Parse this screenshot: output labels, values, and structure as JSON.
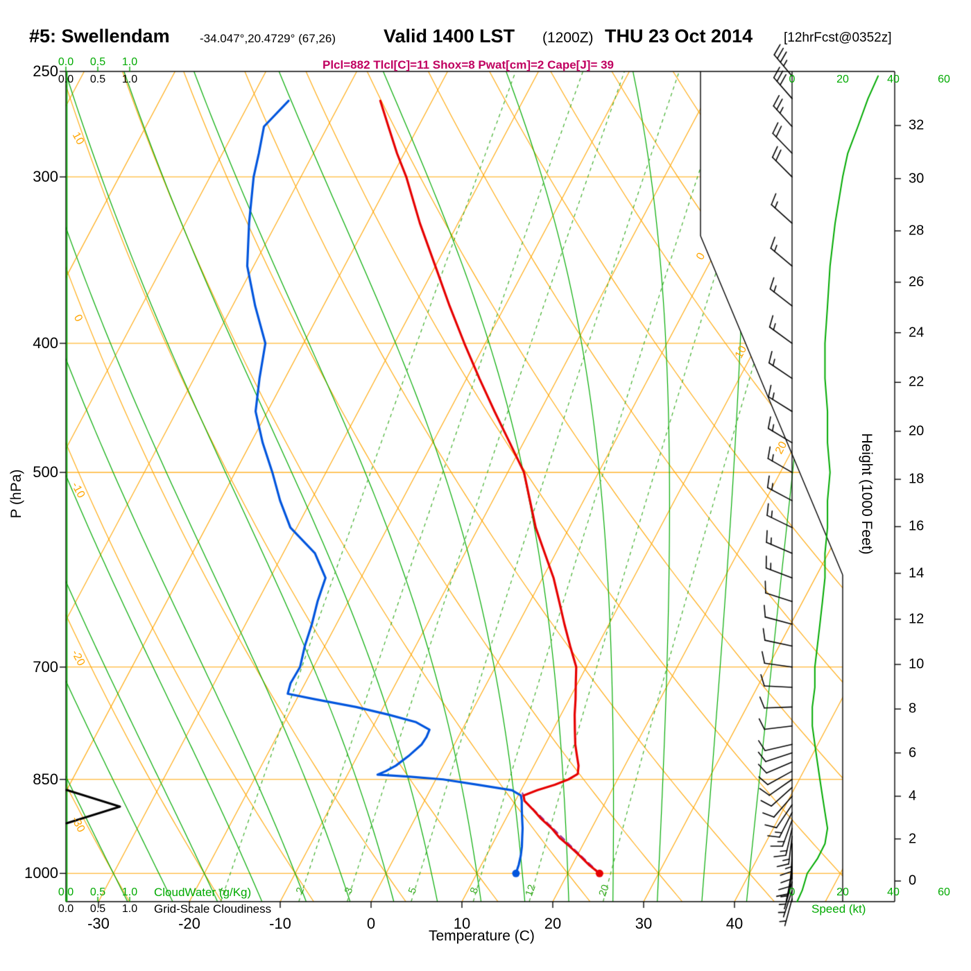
{
  "header": {
    "station": "#5: Swellendam",
    "coords": "-34.047°,20.4729° (67,26)",
    "valid": "Valid 1400 LST",
    "zulu": "(1200Z)",
    "date": "THU 23 Oct 2014",
    "fcst": "[12hrFcst@0352z]",
    "params": "Plcl=882 Tlcl[C]=11 Shox=8 Pwat[cm]=2 Cape[J]= 39"
  },
  "axes": {
    "pressure": {
      "title": "P (hPa)",
      "ticks": [
        250,
        300,
        400,
        500,
        700,
        850,
        1000
      ]
    },
    "temperature": {
      "title": "Temperature (C)",
      "ticks": [
        -30,
        -20,
        -10,
        0,
        10,
        20,
        30,
        40
      ]
    },
    "height": {
      "title": "Height (1000 Feet)",
      "ticks": [
        0,
        2,
        4,
        6,
        8,
        10,
        12,
        14,
        16,
        18,
        20,
        22,
        24,
        26,
        28,
        30,
        32
      ]
    },
    "cloud": {
      "ticks": [
        "0.0",
        "0.5",
        "1.0"
      ]
    },
    "speed": {
      "ticks": [
        0,
        20,
        40,
        60
      ]
    }
  },
  "legend": {
    "cloudwater": "CloudWater (g/Kg)",
    "cloudiness": "Grid-Scale Cloudiness",
    "speed": "Speed (kt)"
  },
  "colors": {
    "orange": "#ffa500",
    "green": "#00aa00",
    "green2": "#3fae2a",
    "red": "#e60000",
    "blue": "#0055dd",
    "purple": "#993399",
    "magenta": "#c00060",
    "black": "#000000"
  },
  "chart_data": {
    "type": "line",
    "variant": "skew-t log-p sounding",
    "pressure_range_hpa": [
      250,
      1050
    ],
    "temperature_axis_c": [
      -30,
      40
    ],
    "grid": {
      "isobars_hpa": [
        300,
        400,
        500,
        700,
        850,
        1000
      ],
      "isotherms_c": {
        "min": -110,
        "max": 50,
        "step": 10
      },
      "dry_adiabats_c": {
        "min": -30,
        "max": 170,
        "step": 10
      },
      "dry_adiabat_labels_c": [
        10,
        0,
        -10,
        -20,
        -30
      ],
      "moist_adiabats_c": {
        "min": -30,
        "max": 40,
        "step": 5
      },
      "mixing_ratio_lines_gkg": [
        1,
        2,
        3,
        5,
        8,
        12,
        20
      ],
      "isotherm_inline_labels_c": [
        0,
        10,
        20
      ]
    },
    "temperature_profile_c": [
      [
        1000,
        23.5
      ],
      [
        985,
        21.8
      ],
      [
        970,
        20.3
      ],
      [
        955,
        18.7
      ],
      [
        940,
        17.0
      ],
      [
        925,
        15.6
      ],
      [
        910,
        13.9
      ],
      [
        895,
        12.4
      ],
      [
        882,
        11.0
      ],
      [
        874,
        10.6
      ],
      [
        866,
        11.8
      ],
      [
        858,
        13.4
      ],
      [
        850,
        14.6
      ],
      [
        842,
        15.3
      ],
      [
        830,
        14.9
      ],
      [
        815,
        14.1
      ],
      [
        800,
        13.3
      ],
      [
        780,
        12.4
      ],
      [
        760,
        11.5
      ],
      [
        740,
        10.7
      ],
      [
        720,
        9.8
      ],
      [
        700,
        8.9
      ],
      [
        675,
        7.0
      ],
      [
        650,
        5.1
      ],
      [
        625,
        3.2
      ],
      [
        600,
        1.2
      ],
      [
        575,
        -1.2
      ],
      [
        550,
        -3.7
      ],
      [
        525,
        -5.9
      ],
      [
        500,
        -8.2
      ],
      [
        475,
        -11.5
      ],
      [
        450,
        -15.0
      ],
      [
        425,
        -18.6
      ],
      [
        400,
        -22.3
      ],
      [
        375,
        -26.1
      ],
      [
        350,
        -30.0
      ],
      [
        325,
        -34.2
      ],
      [
        300,
        -38.4
      ],
      [
        288,
        -40.8
      ],
      [
        275,
        -43.3
      ],
      [
        263,
        -45.7
      ]
    ],
    "dewpoint_profile_c": [
      [
        1000,
        14.3
      ],
      [
        985,
        14.1
      ],
      [
        970,
        13.8
      ],
      [
        955,
        13.4
      ],
      [
        940,
        12.9
      ],
      [
        925,
        12.4
      ],
      [
        910,
        11.8
      ],
      [
        895,
        11.2
      ],
      [
        882,
        10.7
      ],
      [
        874,
        10.3
      ],
      [
        866,
        9.0
      ],
      [
        858,
        5.0
      ],
      [
        850,
        0.8
      ],
      [
        846,
        -3.0
      ],
      [
        843,
        -6.7
      ],
      [
        838,
        -6.0
      ],
      [
        830,
        -5.2
      ],
      [
        815,
        -4.3
      ],
      [
        800,
        -3.6
      ],
      [
        790,
        -3.5
      ],
      [
        780,
        -3.6
      ],
      [
        770,
        -5.5
      ],
      [
        760,
        -9.0
      ],
      [
        750,
        -13.0
      ],
      [
        740,
        -18.0
      ],
      [
        733,
        -21.3
      ],
      [
        720,
        -21.6
      ],
      [
        700,
        -21.5
      ],
      [
        675,
        -22.2
      ],
      [
        650,
        -22.7
      ],
      [
        625,
        -23.4
      ],
      [
        600,
        -23.9
      ],
      [
        575,
        -26.5
      ],
      [
        550,
        -30.7
      ],
      [
        525,
        -33.4
      ],
      [
        500,
        -35.9
      ],
      [
        475,
        -38.7
      ],
      [
        450,
        -41.3
      ],
      [
        425,
        -42.8
      ],
      [
        400,
        -44.2
      ],
      [
        375,
        -47.5
      ],
      [
        350,
        -50.7
      ],
      [
        325,
        -53.0
      ],
      [
        300,
        -55.2
      ],
      [
        288,
        -56.0
      ],
      [
        275,
        -57.0
      ],
      [
        263,
        -55.8
      ]
    ],
    "parcel_path_c": [
      [
        1000,
        23.5
      ],
      [
        960,
        19.4
      ],
      [
        920,
        15.2
      ],
      [
        882,
        11.0
      ],
      [
        868,
        10.2
      ]
    ],
    "surface_dots": {
      "pressure_hpa": 1000,
      "temperature_c": 23.5,
      "dewpoint_c": 14.3
    },
    "wind_barbs_p_kt_dir": [
      [
        1045,
        3,
        195
      ],
      [
        1030,
        4,
        198
      ],
      [
        1015,
        5,
        196
      ],
      [
        1000,
        6,
        192
      ],
      [
        988,
        8,
        188
      ],
      [
        975,
        10,
        184
      ],
      [
        962,
        12,
        180
      ],
      [
        950,
        13,
        181
      ],
      [
        938,
        14,
        187
      ],
      [
        925,
        14,
        193
      ],
      [
        912,
        13,
        200
      ],
      [
        900,
        13,
        207
      ],
      [
        888,
        12,
        214
      ],
      [
        875,
        12,
        221
      ],
      [
        862,
        11,
        228
      ],
      [
        850,
        11,
        235
      ],
      [
        838,
        10,
        241
      ],
      [
        825,
        10,
        247
      ],
      [
        812,
        9,
        252
      ],
      [
        800,
        9,
        257
      ],
      [
        775,
        8,
        263
      ],
      [
        750,
        8,
        268
      ],
      [
        725,
        9,
        273
      ],
      [
        700,
        9,
        278
      ],
      [
        675,
        10,
        282
      ],
      [
        650,
        11,
        285
      ],
      [
        625,
        12,
        288
      ],
      [
        600,
        13,
        291
      ],
      [
        575,
        13,
        293
      ],
      [
        550,
        14,
        296
      ],
      [
        525,
        14,
        298
      ],
      [
        500,
        15,
        300
      ],
      [
        475,
        14,
        301
      ],
      [
        450,
        14,
        302
      ],
      [
        425,
        13,
        304
      ],
      [
        400,
        13,
        306
      ],
      [
        375,
        14,
        308
      ],
      [
        350,
        15,
        310
      ],
      [
        325,
        17,
        312
      ],
      [
        300,
        20,
        315
      ],
      [
        288,
        22,
        316
      ],
      [
        275,
        26,
        318
      ],
      [
        262,
        30,
        319
      ],
      [
        252,
        34,
        320
      ]
    ],
    "wind_speed_profile_kt": [
      [
        1050,
        2
      ],
      [
        1030,
        4
      ],
      [
        1015,
        5
      ],
      [
        1000,
        6
      ],
      [
        975,
        10
      ],
      [
        950,
        13
      ],
      [
        925,
        14
      ],
      [
        900,
        13
      ],
      [
        875,
        12
      ],
      [
        850,
        11
      ],
      [
        825,
        10
      ],
      [
        800,
        9
      ],
      [
        775,
        8
      ],
      [
        750,
        8
      ],
      [
        725,
        9
      ],
      [
        700,
        9
      ],
      [
        675,
        10
      ],
      [
        650,
        11
      ],
      [
        625,
        12
      ],
      [
        600,
        13
      ],
      [
        575,
        13
      ],
      [
        550,
        14
      ],
      [
        525,
        14
      ],
      [
        500,
        15
      ],
      [
        475,
        14
      ],
      [
        450,
        14
      ],
      [
        425,
        13
      ],
      [
        400,
        13
      ],
      [
        375,
        14
      ],
      [
        350,
        15
      ],
      [
        325,
        17
      ],
      [
        300,
        20
      ],
      [
        288,
        22
      ],
      [
        275,
        26
      ],
      [
        262,
        30
      ],
      [
        252,
        34
      ]
    ],
    "cloudwater_profile_gkg": [
      [
        1050,
        0
      ],
      [
        250,
        0
      ]
    ]
  }
}
